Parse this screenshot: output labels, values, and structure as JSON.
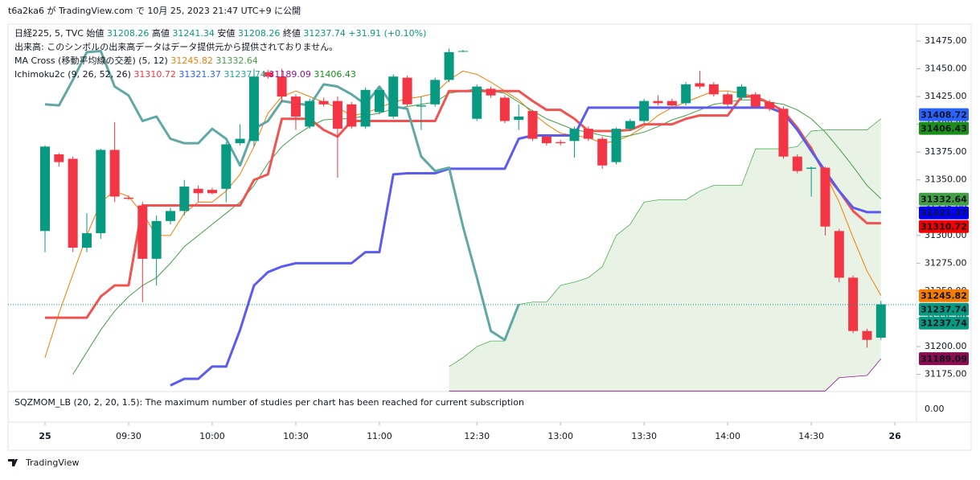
{
  "header": {
    "publish": "t6a2ka6 が TradingView.com で 10月 25, 2023 21:47 UTC+9 に公開"
  },
  "legend": {
    "symbol": "日経225, 5, TVC",
    "ohlc": [
      {
        "label": "始値",
        "value": "31208.26"
      },
      {
        "label": "高値",
        "value": "31241.34"
      },
      {
        "label": "安値",
        "value": "31208.26"
      },
      {
        "label": "終値",
        "value": "31237.74"
      }
    ],
    "change": "+31.91 (+0.10%)",
    "volume": "出来高: このシンボルの出来高データはデータ提供元から提供されておりません。",
    "ma_title": "MA Cross (移動平均線の交差) (5, 12)",
    "ma_values": [
      {
        "value": "31245.82",
        "color": "#f57c00"
      },
      {
        "value": "31332.64",
        "color": "#43a047"
      }
    ],
    "ichimoku_title": "Ichimoku2c (9, 26, 52, 26)",
    "ichimoku_values": [
      {
        "value": "31310.72",
        "color": "#f23645"
      },
      {
        "value": "31321.37",
        "color": "#2962ff"
      },
      {
        "value": "31237.74",
        "color": "#26a69a"
      },
      {
        "value": "31189.09",
        "color": "#8e1599"
      },
      {
        "value": "31406.43",
        "color": "#1b8e1b"
      }
    ]
  },
  "chart_data": {
    "type": "candlestick",
    "up_color": "#089981",
    "down_color": "#f23645",
    "open": [
      31304,
      31373,
      31369,
      31289,
      31302,
      31377,
      31334,
      31327,
      31279,
      31313,
      31322,
      31342,
      31341,
      31342,
      31383,
      31385,
      31447,
      31443,
      31425,
      31398,
      31421,
      31421,
      31418,
      31398,
      31411,
      31407,
      31442,
      31416,
      31418,
      31440,
      31466,
      31405,
      31432,
      31424,
      31404,
      31412,
      31389,
      31384,
      31385,
      31396,
      31387,
      31366,
      31396,
      31403,
      31421,
      31421,
      31419,
      31437,
      31436,
      31427,
      31424,
      31427,
      31420,
      31414,
      31371,
      31360,
      31361,
      31304,
      31262,
      31214,
      31208
    ],
    "high": [
      31381,
      31374,
      31371,
      31320,
      31378,
      31402,
      31336,
      31330,
      31318,
      31325,
      31350,
      31345,
      31343,
      31384,
      31400,
      31450,
      31449,
      31450,
      31427,
      31423,
      31424,
      31425,
      31420,
      31433,
      31433,
      31445,
      31444,
      31425,
      31442,
      31468,
      31467,
      31436,
      31434,
      31426,
      31418,
      31413,
      31390,
      31386,
      31398,
      31398,
      31389,
      31397,
      31405,
      31423,
      31426,
      31423,
      31438,
      31448,
      31438,
      31429,
      31436,
      31429,
      31422,
      31416,
      31373,
      31362,
      31362,
      31306,
      31264,
      31216,
      31241
    ],
    "low": [
      31285,
      31362,
      31285,
      31285,
      31297,
      31330,
      31332,
      31240,
      31255,
      31310,
      31318,
      31330,
      31337,
      31330,
      31381,
      31380,
      31441,
      31420,
      31395,
      31396,
      31416,
      31352,
      31396,
      31396,
      31409,
      31405,
      31416,
      31395,
      31416,
      31438,
      31465,
      31403,
      31424,
      31401,
      31395,
      31385,
      31381,
      31381,
      31370,
      31385,
      31360,
      31364,
      31394,
      31401,
      31417,
      31415,
      31417,
      31432,
      31425,
      31416,
      31422,
      31414,
      31412,
      31369,
      31356,
      31335,
      31300,
      31258,
      31212,
      31199,
      31206
    ],
    "close": [
      31380,
      31366,
      31289,
      31302,
      31377,
      31335,
      31333,
      31279,
      31313,
      31322,
      31344,
      31338,
      31338,
      31382,
      31387,
      31443,
      31443,
      31425,
      31407,
      31421,
      31418,
      31396,
      31398,
      31431,
      31431,
      31443,
      31418,
      31417,
      31440,
      31465,
      31466,
      31434,
      31426,
      31403,
      31407,
      31387,
      31383,
      31383,
      31396,
      31387,
      31363,
      31396,
      31403,
      31421,
      31419,
      31417,
      31436,
      31434,
      31427,
      31418,
      31434,
      31416,
      31414,
      31371,
      31358,
      31361,
      31308,
      31262,
      31214,
      31206,
      31238
    ],
    "lines": [
      {
        "color": "#f57c00",
        "width": 1,
        "values": [
          31190,
          31230,
          31265,
          31300,
          31330,
          31340,
          31335,
          31320,
          31300,
          31300,
          31320,
          31330,
          31330,
          31340,
          31355,
          31380,
          31410,
          31425,
          31430,
          31425,
          31420,
          31415,
          31408,
          31410,
          31415,
          31420,
          31423,
          31425,
          31428,
          31440,
          31448,
          31445,
          31438,
          31430,
          31422,
          31410,
          31400,
          31392,
          31390,
          31388,
          31383,
          31385,
          31390,
          31398,
          31408,
          31415,
          31420,
          31425,
          31430,
          31430,
          31428,
          31425,
          31420,
          31410,
          31395,
          31380,
          31355,
          31330,
          31298,
          31268,
          31246
        ]
      },
      {
        "color": "#43a047",
        "width": 1,
        "values": [
          null,
          null,
          31175,
          31195,
          31215,
          31232,
          31245,
          31255,
          31262,
          31275,
          31290,
          31300,
          31310,
          31320,
          31330,
          31345,
          31365,
          31380,
          31390,
          31398,
          31404,
          31405,
          31405,
          31408,
          31410,
          31414,
          31416,
          31418,
          31420,
          31428,
          31430,
          31432,
          31430,
          31428,
          31420,
          31412,
          31405,
          31400,
          31395,
          31393,
          31390,
          31388,
          31390,
          31393,
          31398,
          31404,
          31408,
          31413,
          31418,
          31420,
          31422,
          31422,
          31420,
          31418,
          31413,
          31405,
          31393,
          31378,
          31362,
          31345,
          31333
        ]
      },
      {
        "color": "#f05350",
        "width": 3,
        "values": [
          31226,
          31226,
          31226,
          31226,
          31245,
          31255,
          31255,
          31327,
          31327,
          31327,
          31327,
          31327,
          31327,
          31327,
          31327,
          31350,
          31355,
          31405,
          31405,
          31405,
          31395,
          31389,
          31403,
          31403,
          31403,
          31403,
          31403,
          31403,
          31403,
          31430,
          31430,
          31430,
          31430,
          31430,
          31430,
          31421,
          31413,
          31413,
          31405,
          31394,
          31394,
          31394,
          31395,
          31400,
          31400,
          31400,
          31405,
          31408,
          31408,
          31408,
          31425,
          31425,
          31419,
          31412,
          31397,
          31378,
          31355,
          31340,
          31322,
          31311,
          31311
        ]
      },
      {
        "color": "#5b5bf0",
        "width": 3,
        "values": [
          null,
          null,
          null,
          null,
          null,
          null,
          null,
          null,
          null,
          31165,
          31171,
          31171,
          31182,
          31182,
          31215,
          31255,
          31267,
          31272,
          31275,
          31275,
          31275,
          31275,
          31275,
          31285,
          31285,
          31355,
          31356,
          31356,
          31356,
          31360,
          31360,
          31360,
          31360,
          31360,
          31387,
          31390,
          31390,
          31390,
          31390,
          31415,
          31415,
          31415,
          31415,
          31415,
          31415,
          31415,
          31415,
          31415,
          31415,
          31415,
          31415,
          31415,
          31415,
          31410,
          31395,
          31376,
          31358,
          31340,
          31325,
          31321,
          31321
        ]
      },
      {
        "color": "#5fa8a5",
        "width": 3,
        "values": [
          31418,
          31417,
          31440,
          31465,
          31466,
          31434,
          31426,
          31403,
          31407,
          31387,
          31383,
          31383,
          31396,
          31387,
          31363,
          31396,
          31403,
          31421,
          31419,
          31417,
          31436,
          31434,
          31427,
          31418,
          31434,
          31416,
          31414,
          31371,
          31358,
          31361,
          31308,
          31262,
          31214,
          31206,
          31238,
          null,
          null,
          null,
          null,
          null,
          null,
          null,
          null,
          null,
          null,
          null,
          null,
          null,
          null,
          null,
          null,
          null,
          null,
          null,
          null,
          null,
          null,
          null,
          null,
          null,
          null
        ]
      }
    ],
    "cloud": {
      "fill": "#e6f2e3",
      "span_a": {
        "color": "#4caf50",
        "values": [
          null,
          null,
          null,
          null,
          null,
          null,
          null,
          null,
          null,
          null,
          null,
          null,
          null,
          null,
          null,
          null,
          null,
          null,
          null,
          null,
          null,
          null,
          null,
          null,
          null,
          null,
          null,
          null,
          null,
          31182,
          31190,
          31200,
          31205,
          31205,
          31238,
          31240,
          31240,
          31255,
          31258,
          31262,
          31272,
          31300,
          31310,
          31330,
          31332,
          31332,
          31332,
          31340,
          31345,
          31345,
          31345,
          31378,
          31378,
          31378,
          31380,
          31394,
          31395,
          31395,
          31395,
          31395,
          31405
        ]
      },
      "span_b": {
        "color": "#8e1599",
        "values": [
          null,
          null,
          null,
          null,
          null,
          null,
          null,
          null,
          null,
          null,
          null,
          null,
          null,
          null,
          null,
          null,
          null,
          null,
          null,
          null,
          null,
          null,
          null,
          null,
          null,
          null,
          null,
          null,
          null,
          31160,
          31160,
          31160,
          31160,
          31160,
          31160,
          31160,
          31160,
          31160,
          31160,
          31160,
          31160,
          31160,
          31160,
          31160,
          31160,
          31160,
          31160,
          31160,
          31160,
          31160,
          31160,
          31160,
          31160,
          31160,
          31160,
          31160,
          31160,
          31172,
          31173,
          31174,
          31189
        ]
      }
    },
    "last_price_line": {
      "value": 31237.74,
      "color": "#089981"
    },
    "ylim": [
      31159.5,
      31490.2
    ],
    "yticks": [
      {
        "value": 31175,
        "label": "31175.00"
      },
      {
        "value": 31200,
        "label": "31200.00"
      },
      {
        "value": 31225,
        "label": "31225.00"
      },
      {
        "value": 31250,
        "label": "31250.00"
      },
      {
        "value": 31275,
        "label": "31275.00"
      },
      {
        "value": 31300,
        "label": "31300.00"
      },
      {
        "value": 31325,
        "label": "31325.00"
      },
      {
        "value": 31350,
        "label": "31350.00"
      },
      {
        "value": 31375,
        "label": "31375.00"
      },
      {
        "value": 31400,
        "label": "31400.00"
      },
      {
        "value": 31425,
        "label": "31425.00"
      },
      {
        "value": 31450,
        "label": "31450.00"
      },
      {
        "value": 31475,
        "label": "31475.00"
      }
    ],
    "xticks": [
      {
        "value": 0,
        "label": "25"
      },
      {
        "value": 6,
        "label": "09:30"
      },
      {
        "value": 12,
        "label": "10:00"
      },
      {
        "value": 18,
        "label": "10:30"
      },
      {
        "value": 24,
        "label": "11:00"
      },
      {
        "value": 31,
        "label": "12:30"
      },
      {
        "value": 37,
        "label": "13:00"
      },
      {
        "value": 43,
        "label": "13:30"
      },
      {
        "value": 49,
        "label": "14:00"
      },
      {
        "value": 55,
        "label": "14:30"
      },
      {
        "value": 61,
        "label": "26"
      }
    ],
    "price_labels": [
      {
        "value": 31408.72,
        "color": "#2962ff"
      },
      {
        "value": 31406.43,
        "color": "#1b8e1b"
      },
      {
        "value": 31332.64,
        "color": "#43a047"
      },
      {
        "value": 31321.37,
        "color": "#0000ff"
      },
      {
        "value": 31310.72,
        "color": "#f20000"
      },
      {
        "value": 31245.82,
        "color": "#f57c00"
      },
      {
        "value": 31237.74,
        "color": "#089981"
      },
      {
        "value": 31237.74,
        "color": "#089981"
      },
      {
        "value": 31189.09,
        "color": "#880e4f"
      }
    ]
  },
  "lower_pane": {
    "text": "SQZMOM_LB (20, 2, 20, 1.5): The maximum number of studies per chart has been reached for current subscription",
    "yticks": [
      {
        "value": 0,
        "label": "0.00"
      }
    ]
  },
  "footer": {
    "brand": "TradingView"
  }
}
